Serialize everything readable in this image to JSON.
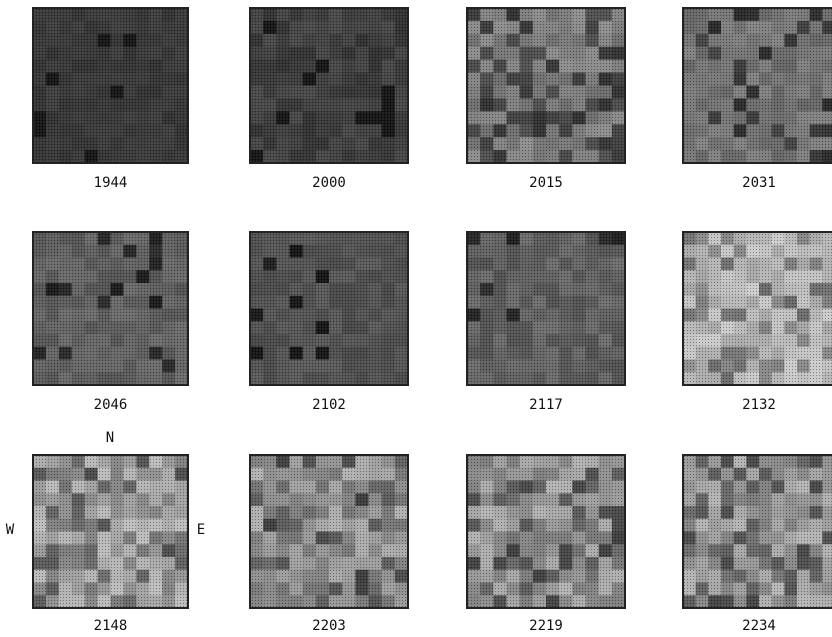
{
  "panels": [
    {
      "label": "1944"
    },
    {
      "label": "2000"
    },
    {
      "label": "2015"
    },
    {
      "label": "2031"
    },
    {
      "label": "2046"
    },
    {
      "label": "2102"
    },
    {
      "label": "2117"
    },
    {
      "label": "2132"
    },
    {
      "label": "2148"
    },
    {
      "label": "2203"
    },
    {
      "label": "2219"
    },
    {
      "label": "2234"
    }
  ],
  "compass": {
    "north": "N",
    "west": "W",
    "east": "E"
  }
}
